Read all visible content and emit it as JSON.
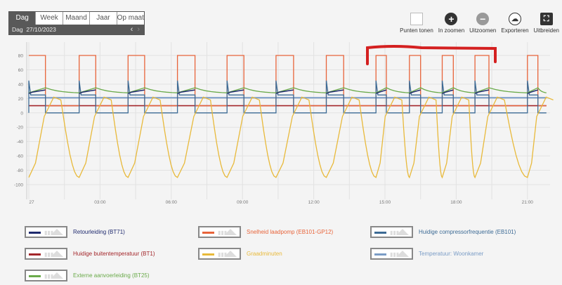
{
  "period_tabs": [
    "Dag",
    "Week",
    "Maand",
    "Jaar",
    "Op maat"
  ],
  "active_tab": "Dag",
  "date_label": "Dag",
  "date_value": "27/10/2023",
  "nav": {
    "prev": "‹",
    "next": "›"
  },
  "toolbar": {
    "points": "Punten tonen",
    "zoom_in": "In zoomen",
    "zoom_out": "Uitzoomen",
    "export": "Exporteren",
    "expand": "Uitbreiden"
  },
  "chart_data": {
    "type": "line",
    "xlabel": "",
    "ylabel": "",
    "xlim_hours": [
      0,
      21.8
    ],
    "ylim": [
      -110,
      92
    ],
    "y_ticks": [
      80,
      60,
      40,
      20,
      0,
      -20,
      -40,
      -60,
      -80,
      -100
    ],
    "x_ticks": [
      {
        "h": 0,
        "label": "27"
      },
      {
        "h": 3,
        "label": "03:00"
      },
      {
        "h": 6,
        "label": "06:00"
      },
      {
        "h": 9,
        "label": "09:00"
      },
      {
        "h": 12,
        "label": "12:00"
      },
      {
        "h": 15,
        "label": "15:00"
      },
      {
        "h": 18,
        "label": "18:00"
      },
      {
        "h": 21,
        "label": "21:00"
      }
    ],
    "grid": true,
    "pump_on_intervals_hours": [
      [
        0,
        0.7
      ],
      [
        2.12,
        2.82
      ],
      [
        4.18,
        4.88
      ],
      [
        6.26,
        7.0
      ],
      [
        8.35,
        9.06
      ],
      [
        10.41,
        11.15
      ],
      [
        12.53,
        13.26
      ],
      [
        14.62,
        15.06
      ],
      [
        16.03,
        16.5
      ],
      [
        17.41,
        17.88
      ],
      [
        18.79,
        19.38
      ],
      [
        21.0,
        21.44
      ]
    ],
    "series": [
      {
        "name": "Retourleiding (BT71)",
        "color": "#1f2a6e",
        "on_range": [
          27,
          32
        ]
      },
      {
        "name": "Snelheid laadpomp (EB101-GP12)",
        "color": "#e8643a",
        "on_value": 80,
        "off_value": 10
      },
      {
        "name": "Huidige compressorfrequentie (EB101)",
        "color": "#3d6b95",
        "on_value": 25,
        "start_spike": 45,
        "off_value": 0
      },
      {
        "name": "Huidige buitentemperatuur (BT1)",
        "color": "#a3262a",
        "value": 10
      },
      {
        "name": "Graadminuten",
        "color": "#e8b93a",
        "min": -90,
        "max": 22
      },
      {
        "name": "Temperatuur: Woonkamer",
        "color": "#7a9cc6",
        "value": 21
      },
      {
        "name": "Externe aanvoerleiding (BT25)",
        "color": "#6aaa4a",
        "range": [
          27,
          35
        ]
      }
    ]
  },
  "annotation_color": "#d42020"
}
